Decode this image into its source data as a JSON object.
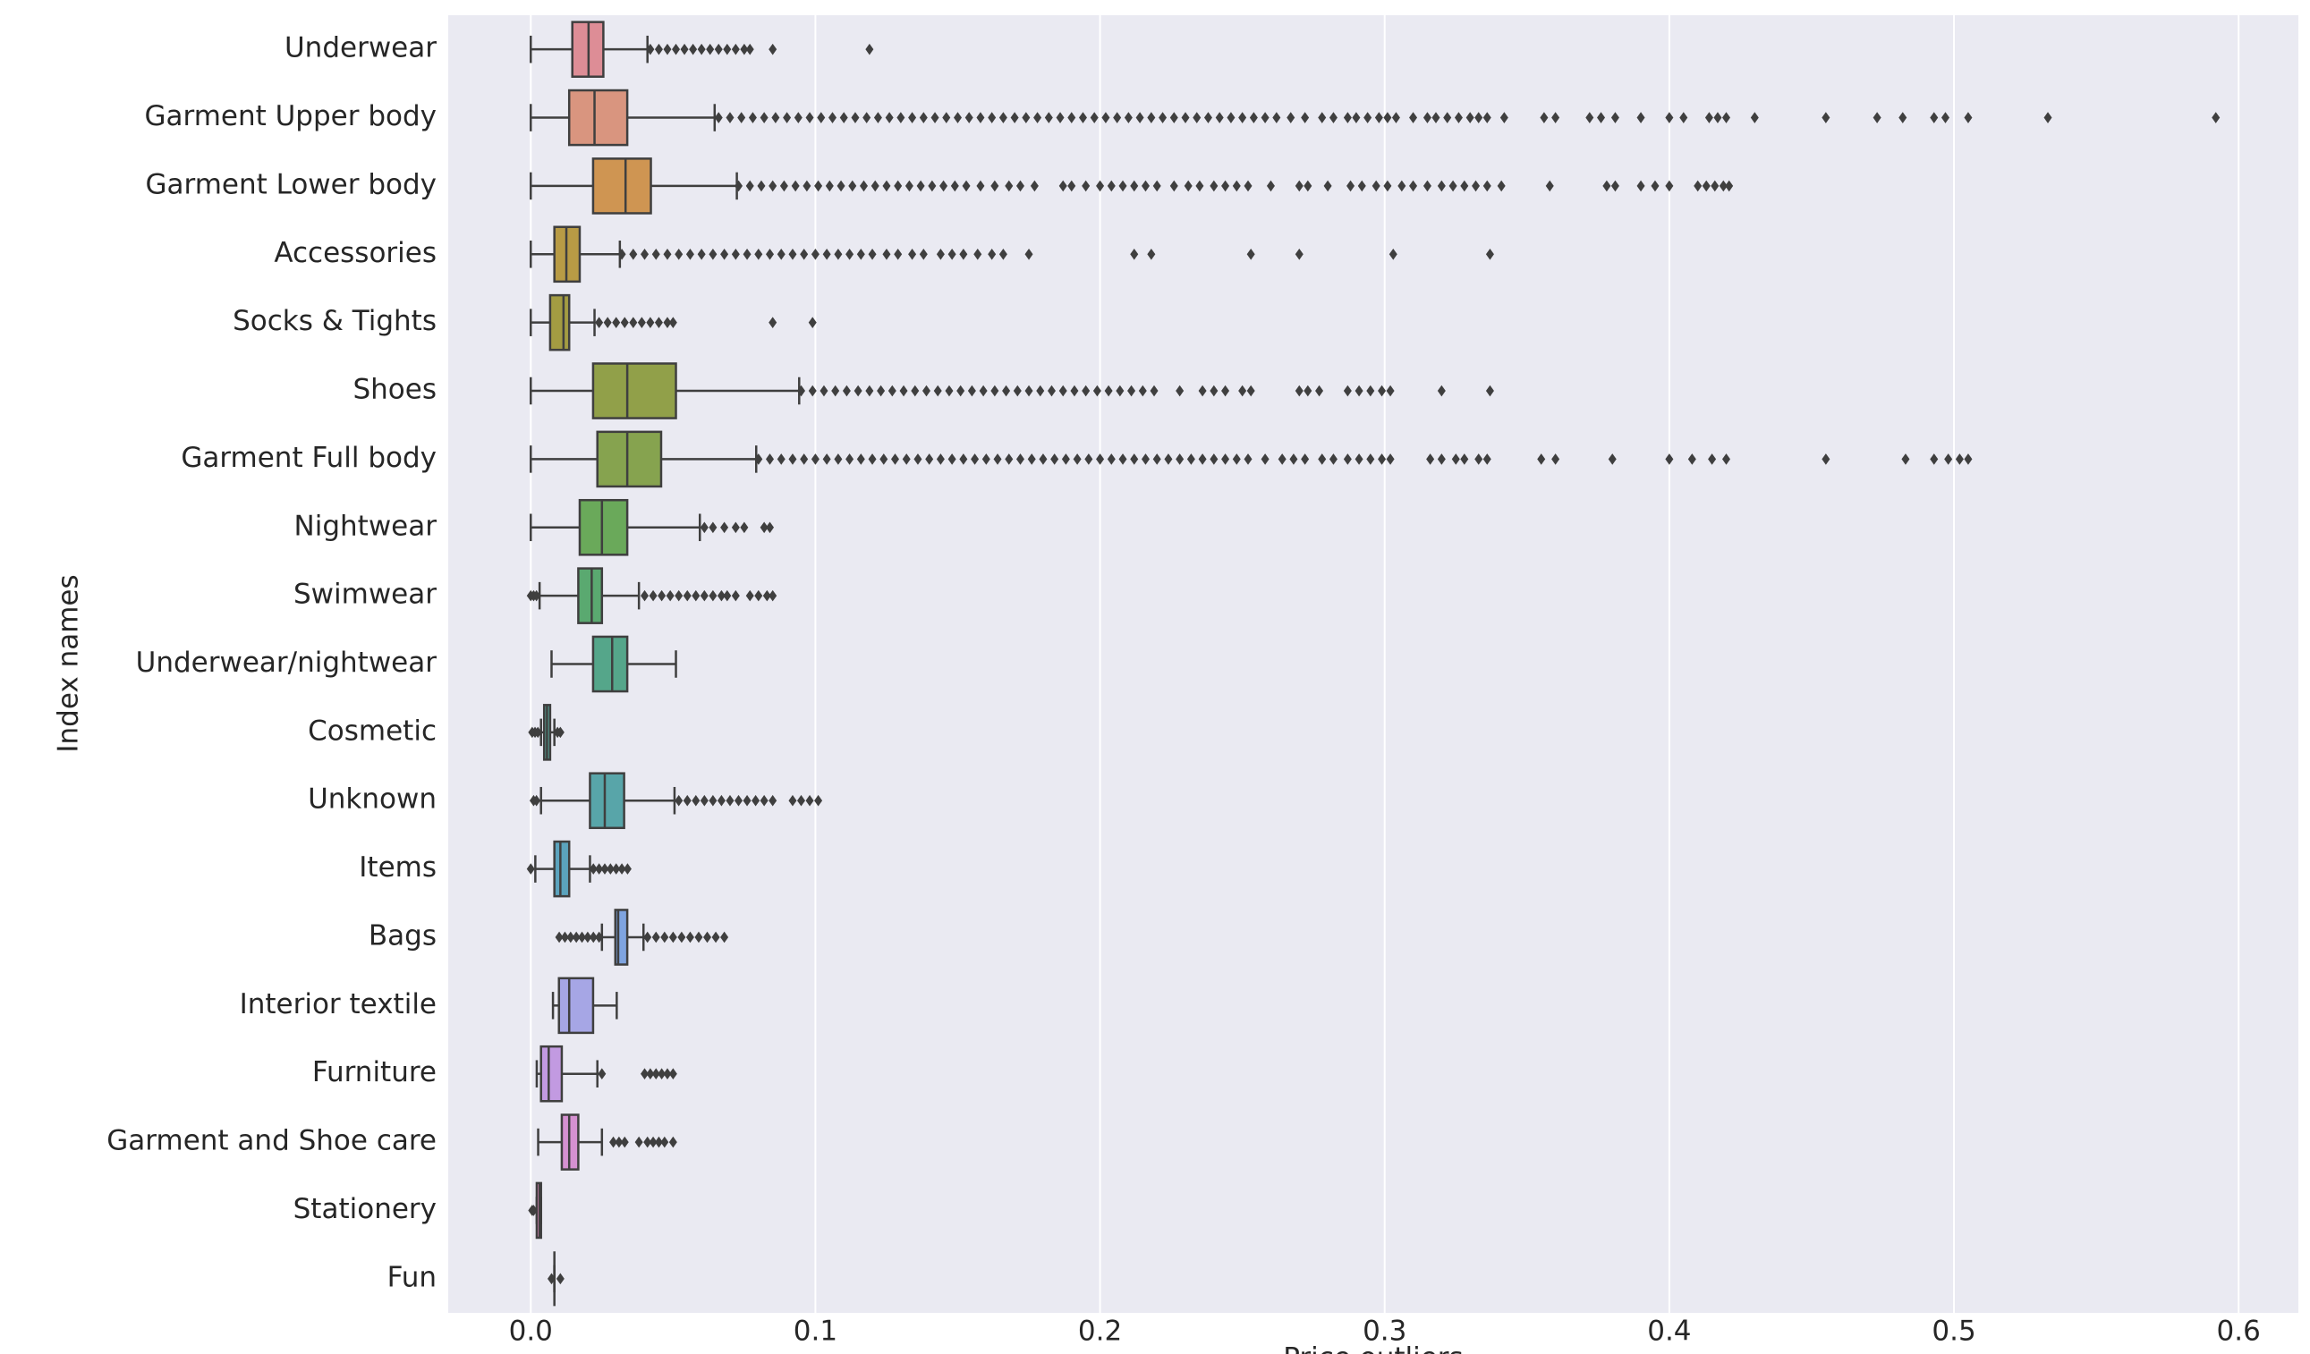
{
  "chart_data": {
    "type": "box",
    "orientation": "horizontal",
    "x_label": "Price outliers",
    "y_label": "Index names",
    "xlim": [
      -0.029,
      0.621
    ],
    "xticks": [
      {
        "value": 0,
        "label": "0.0"
      },
      0.1,
      0.2,
      0.3,
      0.4,
      0.5,
      0.6
    ],
    "grid": true,
    "categories": [
      "Underwear",
      "Garment Upper body",
      "Garment Lower body",
      "Accessories",
      "Socks & Tights",
      "Shoes",
      "Garment Full body",
      "Nightwear",
      "Swimwear",
      "Underwear/nightwear",
      "Cosmetic",
      "Unknown",
      "Items",
      "Bags",
      "Interior textile",
      "Furniture",
      "Garment and Shoe care",
      "Stationery",
      "Fun"
    ],
    "boxes": [
      {
        "color": "#dd8d96",
        "whisker_low": 0,
        "q1": 0.0146,
        "median": 0.0203,
        "q3": 0.0255,
        "whisker_high": 0.041,
        "outliers": [
          0.042,
          0.045,
          0.048,
          0.051,
          0.054,
          0.057,
          0.06,
          0.063,
          0.066,
          0.069,
          0.072,
          0.075,
          0.077,
          0.085,
          0.119
        ]
      },
      {
        "color": "#d9957f",
        "whisker_low": 0,
        "q1": 0.0135,
        "median": 0.0224,
        "q3": 0.0339,
        "whisker_high": 0.0646,
        "outliers": [
          0.066,
          0.07,
          0.074,
          0.078,
          0.082,
          0.086,
          0.09,
          0.094,
          0.098,
          0.102,
          0.106,
          0.11,
          0.114,
          0.118,
          0.122,
          0.126,
          0.13,
          0.134,
          0.138,
          0.142,
          0.146,
          0.15,
          0.154,
          0.158,
          0.162,
          0.166,
          0.17,
          0.174,
          0.178,
          0.182,
          0.186,
          0.19,
          0.194,
          0.198,
          0.202,
          0.206,
          0.21,
          0.214,
          0.218,
          0.222,
          0.226,
          0.23,
          0.234,
          0.238,
          0.242,
          0.246,
          0.25,
          0.254,
          0.258,
          0.262,
          0.267,
          0.272,
          0.278,
          0.282,
          0.287,
          0.29,
          0.294,
          0.298,
          0.301,
          0.304,
          0.31,
          0.315,
          0.318,
          0.322,
          0.326,
          0.33,
          0.333,
          0.336,
          0.342,
          0.356,
          0.36,
          0.372,
          0.376,
          0.381,
          0.39,
          0.4,
          0.405,
          0.414,
          0.417,
          0.42,
          0.43,
          0.455,
          0.473,
          0.482,
          0.493,
          0.497,
          0.505,
          0.533,
          0.592
        ]
      },
      {
        "color": "#cf9552",
        "whisker_low": 0,
        "q1": 0.0219,
        "median": 0.0333,
        "q3": 0.0422,
        "whisker_high": 0.0724,
        "outliers": [
          0.073,
          0.077,
          0.081,
          0.085,
          0.089,
          0.093,
          0.097,
          0.101,
          0.105,
          0.109,
          0.113,
          0.117,
          0.121,
          0.125,
          0.129,
          0.133,
          0.137,
          0.141,
          0.145,
          0.149,
          0.153,
          0.158,
          0.163,
          0.168,
          0.172,
          0.177,
          0.187,
          0.19,
          0.195,
          0.2,
          0.204,
          0.208,
          0.212,
          0.216,
          0.22,
          0.226,
          0.231,
          0.235,
          0.24,
          0.244,
          0.248,
          0.252,
          0.26,
          0.27,
          0.273,
          0.28,
          0.288,
          0.292,
          0.297,
          0.301,
          0.306,
          0.31,
          0.315,
          0.32,
          0.324,
          0.328,
          0.332,
          0.336,
          0.341,
          0.358,
          0.378,
          0.381,
          0.39,
          0.395,
          0.4,
          0.41,
          0.413,
          0.416,
          0.419,
          0.421
        ]
      },
      {
        "color": "#b89b45",
        "whisker_low": 0,
        "q1": 0.0083,
        "median": 0.0125,
        "q3": 0.0172,
        "whisker_high": 0.0313,
        "outliers": [
          0.032,
          0.036,
          0.04,
          0.044,
          0.048,
          0.052,
          0.056,
          0.06,
          0.064,
          0.068,
          0.072,
          0.076,
          0.08,
          0.084,
          0.088,
          0.092,
          0.096,
          0.1,
          0.104,
          0.108,
          0.112,
          0.116,
          0.12,
          0.125,
          0.129,
          0.134,
          0.138,
          0.144,
          0.148,
          0.152,
          0.157,
          0.162,
          0.166,
          0.175,
          0.212,
          0.218,
          0.253,
          0.27,
          0.303,
          0.337
        ]
      },
      {
        "color": "#a39c42",
        "whisker_low": 0,
        "q1": 0.0068,
        "median": 0.0115,
        "q3": 0.0135,
        "whisker_high": 0.0224,
        "outliers": [
          0.024,
          0.027,
          0.03,
          0.033,
          0.036,
          0.039,
          0.042,
          0.045,
          0.048,
          0.05,
          0.085,
          0.099
        ]
      },
      {
        "color": "#91a049",
        "whisker_low": 0,
        "q1": 0.0219,
        "median": 0.0339,
        "q3": 0.051,
        "whisker_high": 0.0943,
        "outliers": [
          0.095,
          0.099,
          0.103,
          0.107,
          0.111,
          0.115,
          0.119,
          0.123,
          0.127,
          0.131,
          0.135,
          0.139,
          0.143,
          0.147,
          0.151,
          0.155,
          0.159,
          0.163,
          0.167,
          0.171,
          0.175,
          0.179,
          0.183,
          0.187,
          0.191,
          0.195,
          0.199,
          0.203,
          0.207,
          0.211,
          0.215,
          0.219,
          0.228,
          0.236,
          0.24,
          0.244,
          0.25,
          0.253,
          0.27,
          0.273,
          0.277,
          0.287,
          0.291,
          0.295,
          0.299,
          0.302,
          0.32,
          0.337
        ]
      },
      {
        "color": "#86a34f",
        "whisker_low": 0,
        "q1": 0.0234,
        "median": 0.0339,
        "q3": 0.0458,
        "whisker_high": 0.0792,
        "outliers": [
          0.08,
          0.084,
          0.088,
          0.092,
          0.096,
          0.1,
          0.104,
          0.108,
          0.112,
          0.116,
          0.12,
          0.124,
          0.128,
          0.132,
          0.136,
          0.14,
          0.144,
          0.148,
          0.152,
          0.156,
          0.16,
          0.164,
          0.168,
          0.172,
          0.176,
          0.18,
          0.184,
          0.188,
          0.192,
          0.196,
          0.2,
          0.204,
          0.208,
          0.212,
          0.216,
          0.22,
          0.224,
          0.228,
          0.232,
          0.236,
          0.24,
          0.244,
          0.248,
          0.252,
          0.258,
          0.264,
          0.268,
          0.272,
          0.278,
          0.282,
          0.287,
          0.291,
          0.295,
          0.299,
          0.302,
          0.316,
          0.32,
          0.325,
          0.328,
          0.333,
          0.336,
          0.355,
          0.36,
          0.38,
          0.4,
          0.408,
          0.415,
          0.42,
          0.455,
          0.483,
          0.493,
          0.498,
          0.502,
          0.505
        ]
      },
      {
        "color": "#6aa95a",
        "whisker_low": 0,
        "q1": 0.0172,
        "median": 0.025,
        "q3": 0.0339,
        "whisker_high": 0.0594,
        "outliers": [
          0.061,
          0.064,
          0.068,
          0.072,
          0.075,
          0.082,
          0.084
        ]
      },
      {
        "color": "#5aa970",
        "whisker_low": 0.0031,
        "q1": 0.0167,
        "median": 0.0214,
        "q3": 0.025,
        "whisker_high": 0.038,
        "outliers": [
          0.0,
          0.001,
          0.002,
          0.04,
          0.043,
          0.046,
          0.049,
          0.052,
          0.055,
          0.058,
          0.061,
          0.064,
          0.067,
          0.069,
          0.072,
          0.077,
          0.08,
          0.083,
          0.085
        ]
      },
      {
        "color": "#55a68a",
        "whisker_low": 0.0073,
        "q1": 0.0219,
        "median": 0.0286,
        "q3": 0.0339,
        "whisker_high": 0.051,
        "outliers": []
      },
      {
        "color": "#56a596",
        "whisker_low": 0.0036,
        "q1": 0.0047,
        "median": 0.0057,
        "q3": 0.0068,
        "whisker_high": 0.0083,
        "outliers": [
          0.0005,
          0.0015,
          0.0025,
          0.0094,
          0.0104
        ]
      },
      {
        "color": "#58a5a9",
        "whisker_low": 0.0036,
        "q1": 0.0208,
        "median": 0.026,
        "q3": 0.0328,
        "whisker_high": 0.0505,
        "outliers": [
          0.001,
          0.002,
          0.052,
          0.055,
          0.058,
          0.061,
          0.064,
          0.067,
          0.07,
          0.073,
          0.076,
          0.079,
          0.082,
          0.085,
          0.092,
          0.095,
          0.098,
          0.101
        ]
      },
      {
        "color": "#5ba3bd",
        "whisker_low": 0.0016,
        "q1": 0.0083,
        "median": 0.0104,
        "q3": 0.0135,
        "whisker_high": 0.0208,
        "outliers": [
          0.0,
          0.022,
          0.024,
          0.026,
          0.028,
          0.03,
          0.032,
          0.034
        ]
      },
      {
        "color": "#7fa4e0",
        "whisker_low": 0.025,
        "q1": 0.0297,
        "median": 0.0307,
        "q3": 0.0339,
        "whisker_high": 0.0396,
        "outliers": [
          0.01,
          0.012,
          0.014,
          0.016,
          0.018,
          0.02,
          0.022,
          0.024,
          0.041,
          0.044,
          0.047,
          0.05,
          0.053,
          0.056,
          0.059,
          0.062,
          0.065,
          0.068
        ]
      },
      {
        "color": "#a6a6e5",
        "whisker_low": 0.0078,
        "q1": 0.0099,
        "median": 0.0135,
        "q3": 0.0219,
        "whisker_high": 0.0302,
        "outliers": []
      },
      {
        "color": "#c29ae1",
        "whisker_low": 0.0021,
        "q1": 0.0036,
        "median": 0.0063,
        "q3": 0.0109,
        "whisker_high": 0.0234,
        "outliers": [
          0.025,
          0.04,
          0.042,
          0.044,
          0.046,
          0.048,
          0.05
        ]
      },
      {
        "color": "#d591d1",
        "whisker_low": 0.0026,
        "q1": 0.0109,
        "median": 0.0135,
        "q3": 0.0167,
        "whisker_high": 0.025,
        "outliers": [
          0.029,
          0.031,
          0.033,
          0.038,
          0.041,
          0.043,
          0.045,
          0.047,
          0.05
        ]
      },
      {
        "color": "#df8ab9",
        "whisker_low": 0.0021,
        "q1": 0.0021,
        "median": 0.0031,
        "q3": 0.0036,
        "whisker_high": 0.0036,
        "outliers": [
          0.0005,
          0.001
        ]
      },
      {
        "color": "#e08aa4",
        "whisker_low": 0.0083,
        "q1": 0.0083,
        "median": 0.0083,
        "q3": 0.0083,
        "whisker_high": 0.0083,
        "outliers": [
          0.0073,
          0.0104
        ]
      }
    ]
  }
}
